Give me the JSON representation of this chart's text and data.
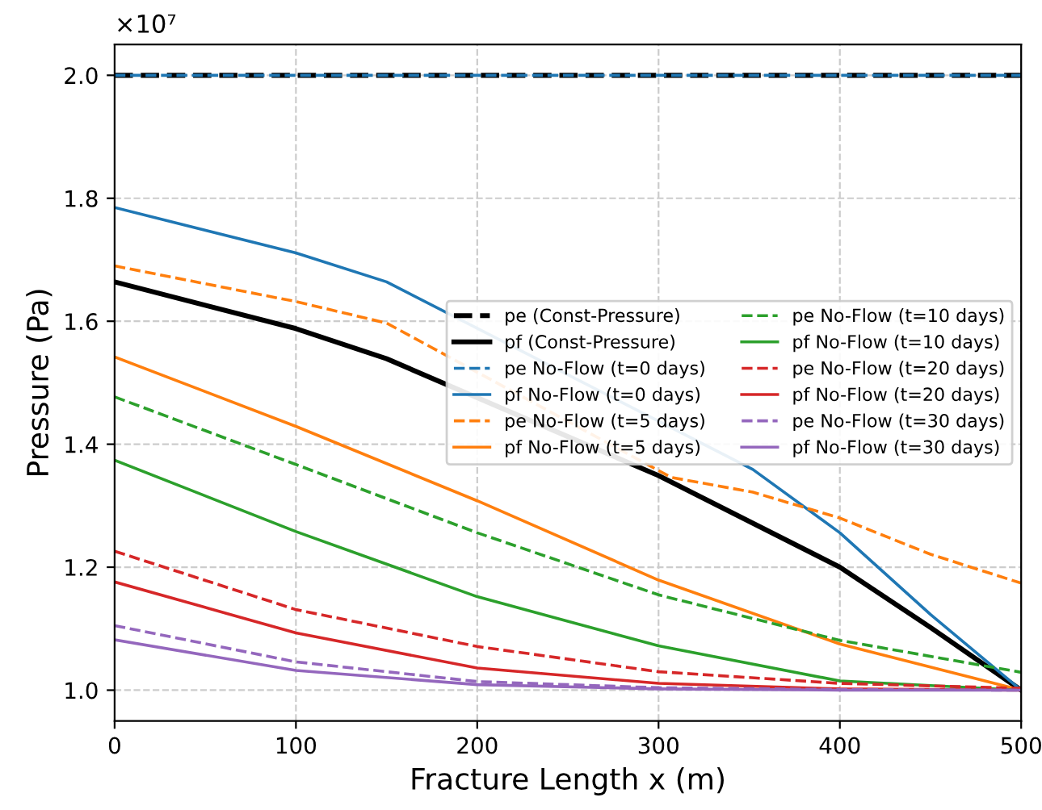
{
  "chart_data": {
    "type": "line",
    "xlabel": "Fracture Length x (m)",
    "ylabel": "Pressure (Pa)",
    "annotations": [
      "×10⁷"
    ],
    "x": [
      0,
      100,
      200,
      300,
      400,
      500
    ],
    "series": [
      {
        "name": "pe (Const-Pressure)",
        "color": "#000000",
        "line_style": "dashed",
        "values": [
          2.0,
          2.0,
          2.0,
          2.0,
          2.0,
          2.0
        ]
      },
      {
        "name": "pf (Const-Pressure)",
        "color": "#000000",
        "line_style": "solid",
        "x": [
          0,
          100,
          150,
          300,
          400,
          450,
          500
        ],
        "values": [
          1.664,
          1.588,
          1.539,
          1.349,
          1.2,
          1.102,
          1.0
        ]
      },
      {
        "name": "pe No-Flow (t=0 days)",
        "color": "#1f77b4",
        "line_style": "dashed",
        "values": [
          2.0,
          2.0,
          2.0,
          2.0,
          2.0,
          2.0
        ]
      },
      {
        "name": "pf No-Flow (t=0 days)",
        "color": "#1f77b4",
        "line_style": "solid",
        "x": [
          0,
          100,
          150,
          352,
          400,
          450,
          500
        ],
        "values": [
          1.785,
          1.711,
          1.664,
          1.359,
          1.256,
          1.123,
          1.0
        ]
      },
      {
        "name": "pe No-Flow (t=5 days)",
        "color": "#ff7f0e",
        "line_style": "dashed",
        "x": [
          0,
          100,
          150,
          307,
          352,
          400,
          450,
          500
        ],
        "values": [
          1.69,
          1.632,
          1.597,
          1.346,
          1.322,
          1.28,
          1.221,
          1.174
        ]
      },
      {
        "name": "pf No-Flow (t=5 days)",
        "color": "#ff7f0e",
        "line_style": "solid",
        "values": [
          1.542,
          1.429,
          1.308,
          1.179,
          1.075,
          1.0
        ]
      },
      {
        "name": "pe No-Flow (t=10 days)",
        "color": "#2ca02c",
        "line_style": "dashed",
        "values": [
          1.477,
          1.367,
          1.256,
          1.155,
          1.081,
          1.029
        ]
      },
      {
        "name": "pf No-Flow (t=10 days)",
        "color": "#2ca02c",
        "line_style": "solid",
        "values": [
          1.374,
          1.258,
          1.152,
          1.072,
          1.015,
          1.0
        ]
      },
      {
        "name": "pe No-Flow (t=20 days)",
        "color": "#d62728",
        "line_style": "dashed",
        "values": [
          1.226,
          1.131,
          1.071,
          1.03,
          1.011,
          1.003
        ]
      },
      {
        "name": "pf No-Flow (t=20 days)",
        "color": "#d62728",
        "line_style": "solid",
        "values": [
          1.176,
          1.093,
          1.036,
          1.011,
          1.002,
          1.0
        ]
      },
      {
        "name": "pe No-Flow (t=30 days)",
        "color": "#9467bd",
        "line_style": "dashed",
        "values": [
          1.105,
          1.046,
          1.014,
          1.004,
          1.001,
          1.0
        ]
      },
      {
        "name": "pf No-Flow (t=30 days)",
        "color": "#9467bd",
        "line_style": "solid",
        "values": [
          1.082,
          1.032,
          1.009,
          1.002,
          1.0,
          1.0
        ]
      }
    ],
    "xlim": [
      0,
      500
    ],
    "xticks": [
      0,
      100,
      200,
      300,
      400,
      500
    ],
    "ylim": [
      0.95,
      2.05
    ],
    "yticks": [
      {
        "value": 1,
        "label": "1.0"
      },
      1.2,
      1.4,
      1.6,
      1.8,
      {
        "value": 2,
        "label": "2.0"
      }
    ],
    "grid": true,
    "legend": "right",
    "marker": "none"
  }
}
